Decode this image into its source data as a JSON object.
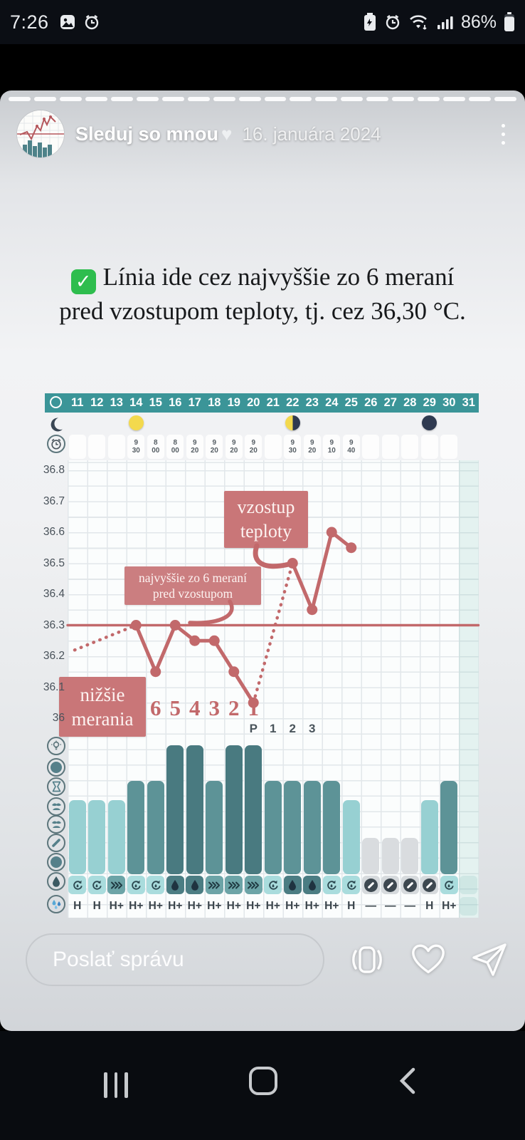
{
  "status_bar": {
    "time": "7:26",
    "battery_percent": "86%",
    "left_icons": [
      "gallery-icon",
      "alarm-icon"
    ],
    "right_icons": [
      "battery-saver-icon",
      "alarm-icon",
      "wifi-icon",
      "signal-icon",
      "battery-icon"
    ]
  },
  "story": {
    "progress_segments": 20,
    "username": "Sleduj so mnou",
    "username_heart": "♥",
    "date": "16. januára 2024",
    "menu_icon": "kebab-menu-icon"
  },
  "caption": {
    "check": "✓",
    "line1": "Línia ide cez najvyššie zo 6 meraní",
    "line2": "pred vzostupom teploty, tj. cez 36,30 °C."
  },
  "chart_data": {
    "type": "line",
    "unit": "°C",
    "days": [
      11,
      12,
      13,
      14,
      15,
      16,
      17,
      18,
      19,
      20,
      21,
      22,
      23,
      24,
      25,
      26,
      27,
      28,
      29,
      30,
      31
    ],
    "highlighted_day": 31,
    "moon_phases": [
      {
        "day": 14,
        "phase": "full-moon"
      },
      {
        "day": 22,
        "phase": "half-moon"
      },
      {
        "day": 29,
        "phase": "new-moon"
      }
    ],
    "measurement_times": [
      {
        "day": 14,
        "time": "9:30"
      },
      {
        "day": 15,
        "time": "8:00"
      },
      {
        "day": 16,
        "time": "8:00"
      },
      {
        "day": 17,
        "time": "9:20"
      },
      {
        "day": 18,
        "time": "9:20"
      },
      {
        "day": 19,
        "time": "9:20"
      },
      {
        "day": 20,
        "time": "9:20"
      },
      {
        "day": 22,
        "time": "9:30"
      },
      {
        "day": 23,
        "time": "9:20"
      },
      {
        "day": 24,
        "time": "9:10"
      },
      {
        "day": 25,
        "time": "9:40"
      }
    ],
    "y_axis": {
      "labels": [
        "36.8",
        "36.7",
        "36.6",
        "36.5",
        "36.4",
        "36.3",
        "36.2",
        "36.1",
        "36"
      ],
      "min": 35.95,
      "max": 36.85,
      "step": 0.1
    },
    "coverline": 36.3,
    "temperatures": [
      {
        "day": 14,
        "temp": 36.3
      },
      {
        "day": 15,
        "temp": 36.15
      },
      {
        "day": 16,
        "temp": 36.3
      },
      {
        "day": 17,
        "temp": 36.25
      },
      {
        "day": 18,
        "temp": 36.25
      },
      {
        "day": 19,
        "temp": 36.15
      },
      {
        "day": 20,
        "temp": 36.05
      },
      {
        "day": 22,
        "temp": 36.5
      },
      {
        "day": 23,
        "temp": 36.35
      },
      {
        "day": 24,
        "temp": 36.6
      },
      {
        "day": 25,
        "temp": 36.55
      }
    ],
    "dotted_segments": [
      {
        "from_day": 20,
        "to_day": 22
      }
    ],
    "annotations": [
      {
        "id": "rise",
        "line1": "vzostup",
        "line2": "teploty"
      },
      {
        "id": "highest",
        "line1": "najvyššie zo 6 meraní",
        "line2": "pred vzostupom"
      },
      {
        "id": "lower",
        "line1": "nižšie",
        "line2": "merania"
      }
    ],
    "count_back_labels": {
      "days": [
        15,
        16,
        17,
        18,
        19,
        20
      ],
      "labels": [
        "6",
        "5",
        "4",
        "3",
        "2",
        "1"
      ]
    },
    "peak_labels": {
      "days": [
        20,
        21,
        22,
        23
      ],
      "labels": [
        "P",
        "1",
        "2",
        "3"
      ]
    },
    "bars": [
      {
        "day": 11,
        "level": "medium"
      },
      {
        "day": 12,
        "level": "medium"
      },
      {
        "day": 13,
        "level": "medium"
      },
      {
        "day": 14,
        "level": "tall"
      },
      {
        "day": 15,
        "level": "tall"
      },
      {
        "day": 16,
        "level": "tallest"
      },
      {
        "day": 17,
        "level": "tallest"
      },
      {
        "day": 18,
        "level": "tall"
      },
      {
        "day": 19,
        "level": "tallest"
      },
      {
        "day": 20,
        "level": "tallest"
      },
      {
        "day": 21,
        "level": "tall"
      },
      {
        "day": 22,
        "level": "tall"
      },
      {
        "day": 23,
        "level": "tall"
      },
      {
        "day": 24,
        "level": "tall"
      },
      {
        "day": 25,
        "level": "medium"
      },
      {
        "day": 26,
        "level": "gray"
      },
      {
        "day": 27,
        "level": "gray"
      },
      {
        "day": 28,
        "level": "gray"
      },
      {
        "day": 29,
        "level": "medium"
      },
      {
        "day": 30,
        "level": "tall"
      }
    ],
    "fluid_row": [
      {
        "day": 11,
        "symbol": "refresh-droplet"
      },
      {
        "day": 12,
        "symbol": "refresh-droplet"
      },
      {
        "day": 13,
        "symbol": "chevrons"
      },
      {
        "day": 14,
        "symbol": "refresh-droplet"
      },
      {
        "day": 15,
        "symbol": "refresh-droplet"
      },
      {
        "day": 16,
        "symbol": "drop"
      },
      {
        "day": 17,
        "symbol": "drop"
      },
      {
        "day": 18,
        "symbol": "chevrons"
      },
      {
        "day": 19,
        "symbol": "chevrons"
      },
      {
        "day": 20,
        "symbol": "chevrons"
      },
      {
        "day": 21,
        "symbol": "refresh-droplet"
      },
      {
        "day": 22,
        "symbol": "drop"
      },
      {
        "day": 23,
        "symbol": "drop"
      },
      {
        "day": 24,
        "symbol": "refresh-droplet"
      },
      {
        "day": 25,
        "symbol": "refresh-droplet"
      },
      {
        "day": 26,
        "symbol": "crossed-circle"
      },
      {
        "day": 27,
        "symbol": "crossed-circle"
      },
      {
        "day": 28,
        "symbol": "crossed-circle"
      },
      {
        "day": 29,
        "symbol": "crossed-circle"
      },
      {
        "day": 30,
        "symbol": "refresh-droplet"
      }
    ],
    "intensity_row": [
      {
        "day": 11,
        "value": "H"
      },
      {
        "day": 12,
        "value": "H"
      },
      {
        "day": 13,
        "value": "H+"
      },
      {
        "day": 14,
        "value": "H+"
      },
      {
        "day": 15,
        "value": "H+"
      },
      {
        "day": 16,
        "value": "H+"
      },
      {
        "day": 17,
        "value": "H+"
      },
      {
        "day": 18,
        "value": "H+"
      },
      {
        "day": 19,
        "value": "H+"
      },
      {
        "day": 20,
        "value": "H+"
      },
      {
        "day": 21,
        "value": "H+"
      },
      {
        "day": 22,
        "value": "H+"
      },
      {
        "day": 23,
        "value": "H+"
      },
      {
        "day": 24,
        "value": "H+"
      },
      {
        "day": 25,
        "value": "H"
      },
      {
        "day": 26,
        "value": "—"
      },
      {
        "day": 27,
        "value": "—"
      },
      {
        "day": 28,
        "value": "—"
      },
      {
        "day": 29,
        "value": "H"
      },
      {
        "day": 30,
        "value": "H+"
      }
    ],
    "row_icons": [
      "calendar-circle-icon",
      "moon-icon",
      "alarm-clock-icon",
      "lightbulb-icon",
      "filled-circle-icon",
      "hourglass-icon",
      "mucus-icon",
      "mucus-icon",
      "pencil-icon",
      "filled-circle-icon",
      "droplet-icon",
      "water-splash-icon"
    ],
    "colors": {
      "accent_rose": "#c2696b",
      "annotation_bg": "#c97678",
      "header_teal": "#3b9598",
      "bar_tallest": "#497a80",
      "bar_tall": "#5d9397",
      "bar_medium": "#97d0d2",
      "bar_gray": "#d9dcdf",
      "fluid_light": "#a9dcdd",
      "fluid_mid": "#6ca4a7",
      "fluid_dark": "#4b7d83",
      "fluid_gray": "#d6dadd",
      "moon_full": "#f3d94d",
      "moon_new": "#2f3a50"
    }
  },
  "reply_bar": {
    "placeholder": "Poslať správu",
    "icons": [
      "reshare-icon",
      "heart-icon",
      "send-icon"
    ]
  },
  "nav_bar": {
    "buttons": [
      "recents",
      "home",
      "back"
    ]
  }
}
